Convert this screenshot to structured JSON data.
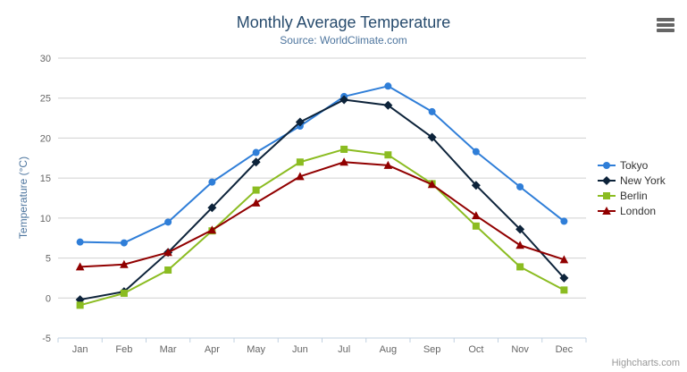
{
  "chart_data": {
    "type": "line",
    "title": "Monthly Average Temperature",
    "subtitle": "Source: WorldClimate.com",
    "categories": [
      "Jan",
      "Feb",
      "Mar",
      "Apr",
      "May",
      "Jun",
      "Jul",
      "Aug",
      "Sep",
      "Oct",
      "Nov",
      "Dec"
    ],
    "series": [
      {
        "name": "Tokyo",
        "color": "#2f7ed8",
        "marker": "circle",
        "values": [
          7.0,
          6.9,
          9.5,
          14.5,
          18.2,
          21.5,
          25.2,
          26.5,
          23.3,
          18.3,
          13.9,
          9.6
        ]
      },
      {
        "name": "New York",
        "color": "#0d233a",
        "marker": "diamond",
        "values": [
          -0.2,
          0.8,
          5.7,
          11.3,
          17.0,
          22.0,
          24.8,
          24.1,
          20.1,
          14.1,
          8.6,
          2.5
        ]
      },
      {
        "name": "Berlin",
        "color": "#8bbc21",
        "marker": "square",
        "values": [
          -0.9,
          0.6,
          3.5,
          8.4,
          13.5,
          17.0,
          18.6,
          17.9,
          14.3,
          9.0,
          3.9,
          1.0
        ]
      },
      {
        "name": "London",
        "color": "#910000",
        "marker": "triangle",
        "values": [
          3.9,
          4.2,
          5.7,
          8.5,
          11.9,
          15.2,
          17.0,
          16.6,
          14.2,
          10.3,
          6.6,
          4.8
        ]
      }
    ],
    "xlabel": "",
    "ylabel": "Temperature (°C)",
    "ylim": [
      -5,
      30
    ],
    "yticks": [
      -5,
      0,
      5,
      10,
      15,
      20,
      25,
      30
    ],
    "grid": true,
    "legend_position": "right"
  },
  "credit": {
    "label": "Highcharts.com"
  },
  "icons": {
    "export_menu": "hamburger-menu"
  },
  "colors": {
    "title": "#274b6d",
    "subtitle": "#4d759e",
    "axis_labels": "#666666",
    "axis_line": "#c0d0e0",
    "gridline": "#d0d0d0",
    "legend_text": "#333333",
    "credit": "#999999",
    "background": "#ffffff"
  }
}
